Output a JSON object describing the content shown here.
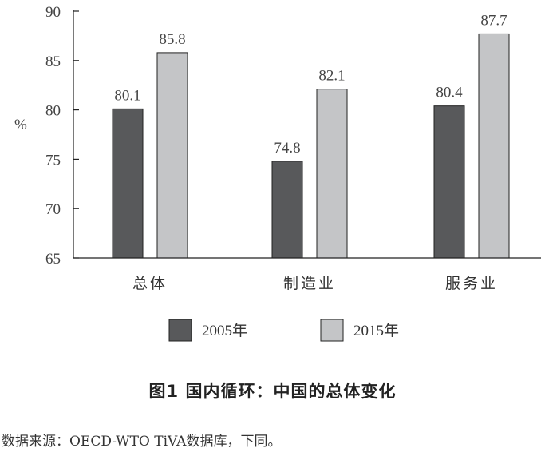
{
  "chart_data": {
    "type": "bar",
    "ylabel": "%",
    "ylim": [
      65,
      90
    ],
    "yticks": [
      65,
      70,
      75,
      80,
      85,
      90
    ],
    "categories": [
      "总体",
      "制造业",
      "服务业"
    ],
    "series": [
      {
        "name": "2005年",
        "color": "#58595b",
        "values": [
          80.1,
          74.8,
          80.4
        ]
      },
      {
        "name": "2015年",
        "color": "#c4c5c7",
        "values": [
          85.8,
          82.1,
          87.7
        ]
      }
    ],
    "legend_position": "bottom",
    "grid": false
  },
  "caption": "图1  国内循环：中国的总体变化",
  "source": "数据来源：OECD-WTO TiVA数据库，下同。"
}
